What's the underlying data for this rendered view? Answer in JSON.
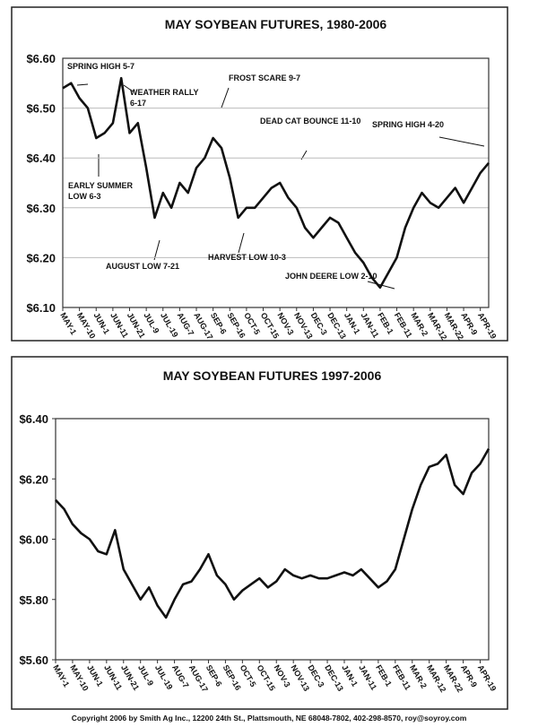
{
  "chart_data": [
    {
      "type": "line",
      "title": "MAY SOYBEAN FUTURES, 1980-2006",
      "categories": [
        "MAY-1",
        null,
        "MAY-10",
        null,
        "JUN-1",
        null,
        "JUN-11",
        null,
        "JUN-21",
        null,
        "JUL-9",
        null,
        "JUL-19",
        null,
        "AUG-7",
        null,
        "AUG-17",
        null,
        "SEP-6",
        null,
        "SEP-16",
        null,
        "OCT-5",
        null,
        "OCT-15",
        null,
        "NOV-3",
        null,
        "NOV-13",
        null,
        "DEC-3",
        null,
        "DEC-13",
        null,
        "JAN-1",
        null,
        "JAN-11",
        null,
        "FEB-1",
        null,
        "FEB-11",
        null,
        "MAR-2",
        null,
        "MAR-12",
        null,
        "MAR-22",
        null,
        "APR-9",
        null,
        "APR-19",
        null
      ],
      "series": [
        {
          "color": "#111111",
          "values": [
            6.54,
            6.55,
            6.52,
            6.5,
            6.44,
            6.45,
            6.47,
            6.56,
            6.45,
            6.47,
            6.38,
            6.28,
            6.33,
            6.3,
            6.35,
            6.33,
            6.38,
            6.4,
            6.44,
            6.42,
            6.36,
            6.28,
            6.3,
            6.3,
            6.32,
            6.34,
            6.35,
            6.32,
            6.3,
            6.26,
            6.24,
            6.26,
            6.28,
            6.27,
            6.24,
            6.21,
            6.19,
            6.16,
            6.14,
            6.17,
            6.2,
            6.26,
            6.3,
            6.33,
            6.31,
            6.3,
            6.32,
            6.34,
            6.31,
            6.34,
            6.37,
            6.39
          ]
        }
      ],
      "ylim": [
        6.1,
        6.6
      ],
      "yticks": [
        {
          "value": 6.1,
          "label": "$6.10"
        },
        {
          "value": 6.2,
          "label": "$6.20"
        },
        {
          "value": 6.3,
          "label": "$6.30"
        },
        {
          "value": 6.4,
          "label": "$6.40"
        },
        {
          "value": 6.5,
          "label": "$6.50"
        },
        {
          "value": 6.6,
          "label": "$6.60"
        }
      ],
      "grid": true,
      "annotations": [
        [
          "SPRING HIGH 5-7"
        ],
        [
          "WEATHER RALLY",
          "6-17"
        ],
        [
          "FROST SCARE 9-7"
        ],
        [
          "DEAD CAT BOUNCE 11-10"
        ],
        [
          "SPRING HIGH 4-20"
        ],
        [
          "EARLY SUMMER",
          "LOW 6-3"
        ],
        [
          "AUGUST LOW 7-21"
        ],
        [
          "HARVEST LOW 10-3"
        ],
        [
          "JOHN DEERE LOW 2-10"
        ]
      ]
    },
    {
      "type": "line",
      "title": "MAY SOYBEAN FUTURES 1997-2006",
      "categories": [
        "MAY-1",
        null,
        "MAY-10",
        null,
        "JUN-1",
        null,
        "JUN-11",
        null,
        "JUN-21",
        null,
        "JUL-9",
        null,
        "JUL-19",
        null,
        "AUG-7",
        null,
        "AUG-17",
        null,
        "SEP-6",
        null,
        "SEP-16",
        null,
        "OCT-5",
        null,
        "OCT-15",
        null,
        "NOV-3",
        null,
        "NOV-13",
        null,
        "DEC-3",
        null,
        "DEC-13",
        null,
        "JAN-1",
        null,
        "JAN-11",
        null,
        "FEB-1",
        null,
        "FEB-11",
        null,
        "MAR-2",
        null,
        "MAR-12",
        null,
        "MAR-22",
        null,
        "APR-9",
        null,
        "APR-19",
        null
      ],
      "series": [
        {
          "color": "#111111",
          "values": [
            6.13,
            6.1,
            6.05,
            6.02,
            6.0,
            5.96,
            5.95,
            6.03,
            5.9,
            5.85,
            5.8,
            5.84,
            5.78,
            5.74,
            5.8,
            5.85,
            5.86,
            5.9,
            5.95,
            5.88,
            5.85,
            5.8,
            5.83,
            5.85,
            5.87,
            5.84,
            5.86,
            5.9,
            5.88,
            5.87,
            5.88,
            5.87,
            5.87,
            5.88,
            5.89,
            5.88,
            5.9,
            5.87,
            5.84,
            5.86,
            5.9,
            6.0,
            6.1,
            6.18,
            6.24,
            6.25,
            6.28,
            6.18,
            6.15,
            6.22,
            6.25,
            6.3
          ]
        }
      ],
      "ylim": [
        5.6,
        6.4
      ],
      "yticks": [
        {
          "value": 5.6,
          "label": "$5.60"
        },
        {
          "value": 5.8,
          "label": "$5.80"
        },
        {
          "value": 6.0,
          "label": "$6.00"
        },
        {
          "value": 6.2,
          "label": "$6.20"
        },
        {
          "value": 6.4,
          "label": "$6.40"
        }
      ],
      "grid": false
    }
  ],
  "footer": "Copyright 2006 by Smith Ag Inc., 12200 24th St., Plattsmouth, NE 68048-7802, 402-298-8570, roy@soyroy.com"
}
